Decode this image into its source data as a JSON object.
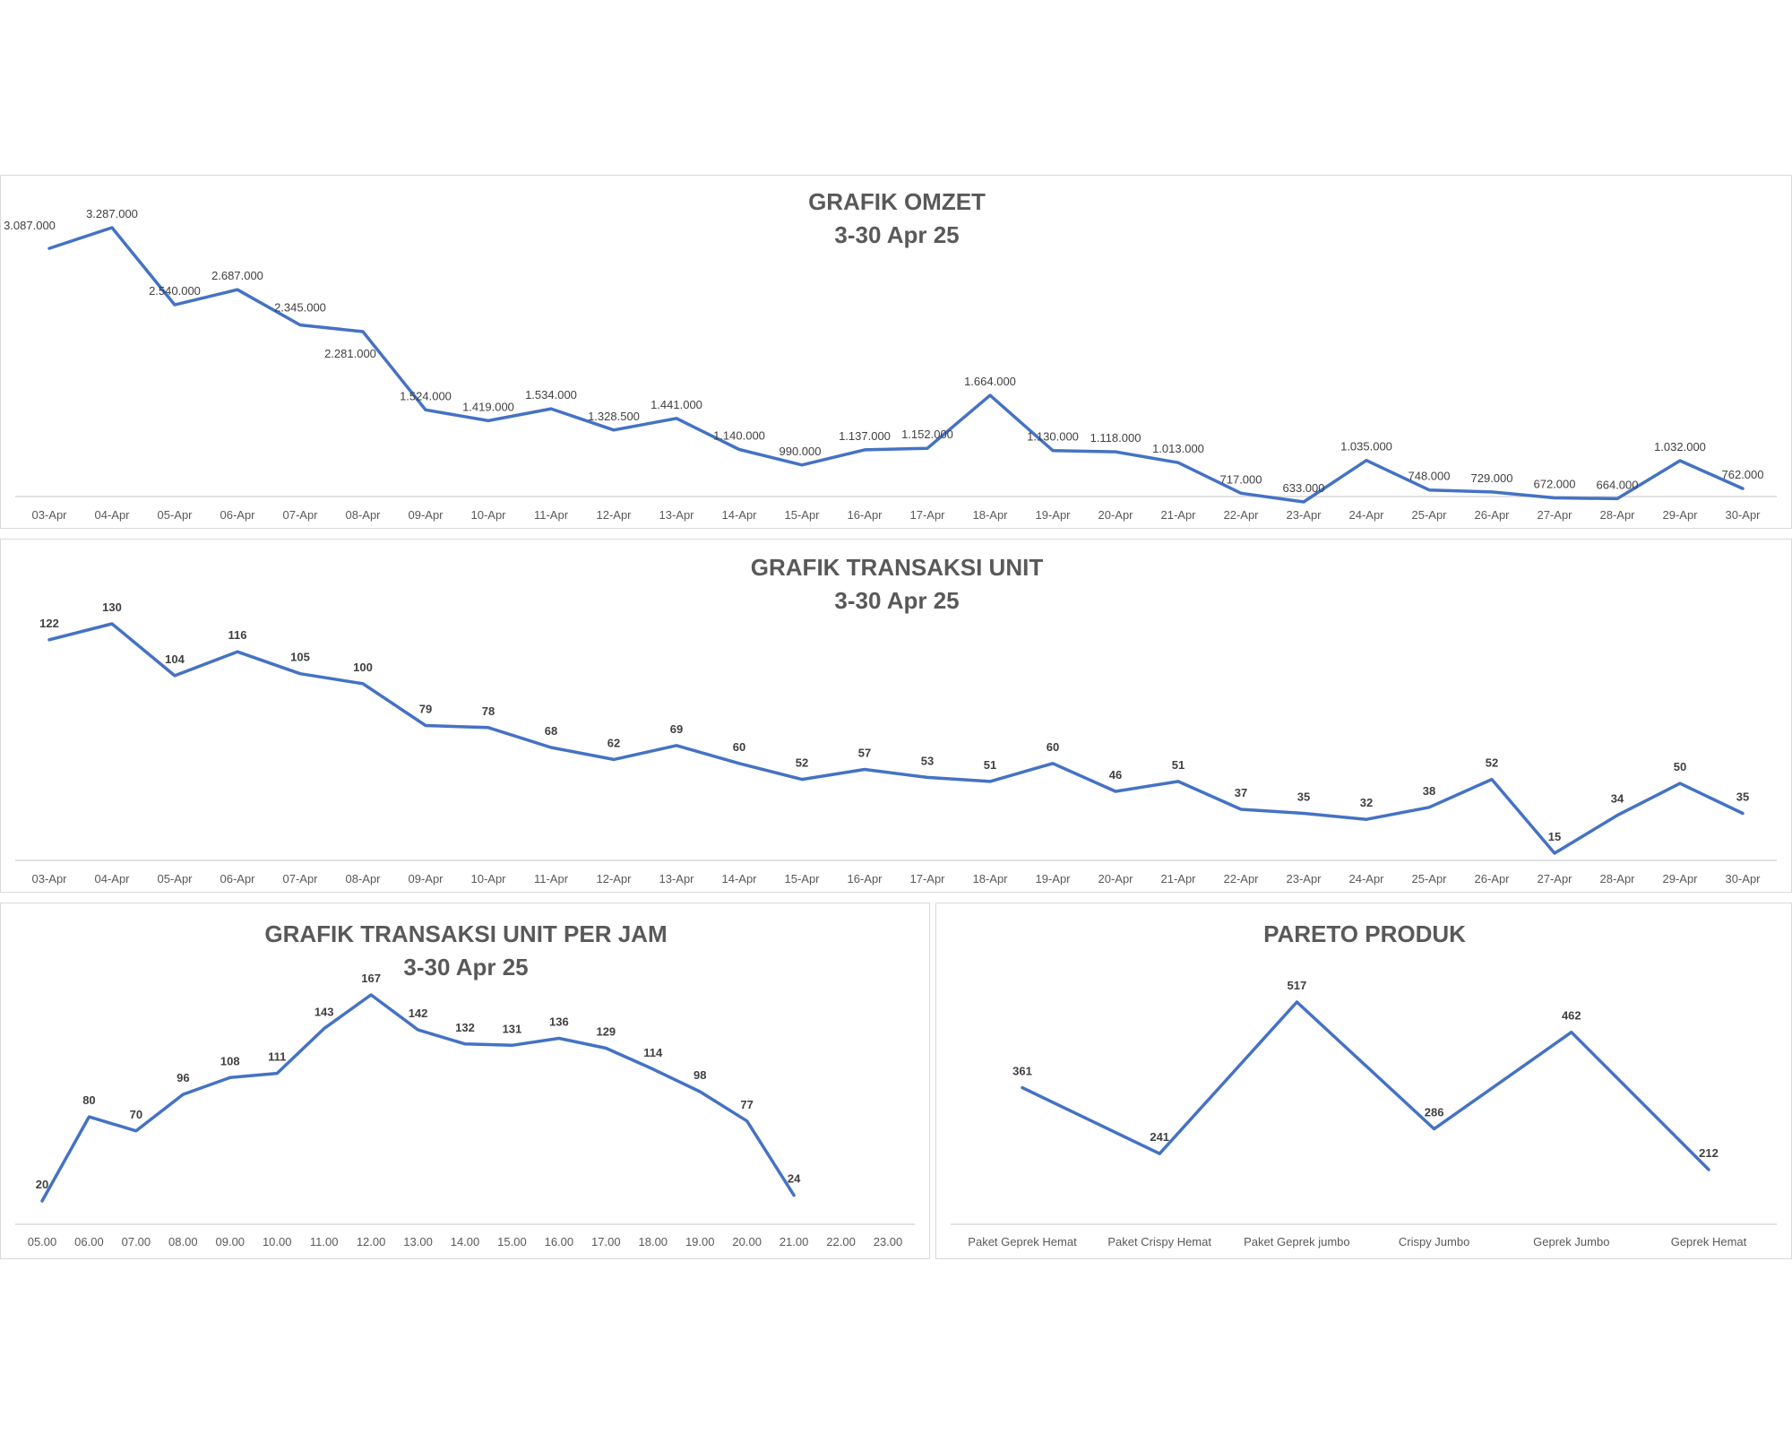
{
  "colors": {
    "line": "#4472C4",
    "axis": "#d9d9d9",
    "text": "#595959"
  },
  "chart_data": [
    {
      "id": "omzet",
      "type": "line",
      "title": "GRAFIK OMZET",
      "subtitle": "3-30 Apr 25",
      "categories": [
        "03-Apr",
        "04-Apr",
        "05-Apr",
        "06-Apr",
        "07-Apr",
        "08-Apr",
        "09-Apr",
        "10-Apr",
        "11-Apr",
        "12-Apr",
        "13-Apr",
        "14-Apr",
        "15-Apr",
        "16-Apr",
        "17-Apr",
        "18-Apr",
        "19-Apr",
        "20-Apr",
        "21-Apr",
        "22-Apr",
        "23-Apr",
        "24-Apr",
        "25-Apr",
        "26-Apr",
        "27-Apr",
        "28-Apr",
        "29-Apr",
        "30-Apr"
      ],
      "values": [
        3087000,
        3287000,
        2540000,
        2687000,
        2345000,
        2281000,
        1524000,
        1419000,
        1534000,
        1328500,
        1441000,
        1140000,
        990000,
        1137000,
        1152000,
        1664000,
        1130000,
        1118000,
        1013000,
        717000,
        633000,
        1035000,
        748000,
        729000,
        672000,
        664000,
        1032000,
        762000
      ],
      "labels": [
        "3.087.000",
        "3.287.000",
        "2.540.000",
        "2.687.000",
        "2.345.000",
        "2.281.000",
        "1.524.000",
        "1.419.000",
        "1.534.000",
        "1.328.500",
        "1.441.000",
        "1.140.000",
        "990.000",
        "1.137.000",
        "1.152.000",
        "1.664.000",
        "1.130.000",
        "1.118.000",
        "1.013.000",
        "717.000",
        "633.000",
        "1.035.000",
        "748.000",
        "729.000",
        "672.000",
        "664.000",
        "1.032.000",
        "762.000"
      ],
      "label_style": "normal",
      "xlabel": "",
      "ylabel": "",
      "ylim": [
        0,
        3500000
      ],
      "grid": false,
      "legend": "none"
    },
    {
      "id": "unit",
      "type": "line",
      "title": "GRAFIK TRANSAKSI UNIT",
      "subtitle": "3-30 Apr 25",
      "categories": [
        "03-Apr",
        "04-Apr",
        "05-Apr",
        "06-Apr",
        "07-Apr",
        "08-Apr",
        "09-Apr",
        "10-Apr",
        "11-Apr",
        "12-Apr",
        "13-Apr",
        "14-Apr",
        "15-Apr",
        "16-Apr",
        "17-Apr",
        "18-Apr",
        "19-Apr",
        "20-Apr",
        "21-Apr",
        "22-Apr",
        "23-Apr",
        "24-Apr",
        "25-Apr",
        "26-Apr",
        "27-Apr",
        "28-Apr",
        "29-Apr",
        "30-Apr"
      ],
      "values": [
        122,
        130,
        104,
        116,
        105,
        100,
        79,
        78,
        68,
        62,
        69,
        60,
        52,
        57,
        53,
        51,
        60,
        46,
        51,
        37,
        35,
        32,
        38,
        52,
        15,
        34,
        50,
        35
      ],
      "labels": [
        "122",
        "130",
        "104",
        "116",
        "105",
        "100",
        "79",
        "78",
        "68",
        "62",
        "69",
        "60",
        "52",
        "57",
        "53",
        "51",
        "60",
        "46",
        "51",
        "37",
        "35",
        "32",
        "38",
        "52",
        "15",
        "34",
        "50",
        "35"
      ],
      "label_style": "bold",
      "xlabel": "",
      "ylabel": "",
      "ylim": [
        0,
        140
      ],
      "grid": false,
      "legend": "none"
    },
    {
      "id": "jam",
      "type": "line",
      "title": "GRAFIK TRANSAKSI UNIT PER JAM",
      "subtitle": "3-30 Apr 25",
      "categories": [
        "05.00",
        "06.00",
        "07.00",
        "08.00",
        "09.00",
        "10.00",
        "11.00",
        "12.00",
        "13.00",
        "14.00",
        "15.00",
        "16.00",
        "17.00",
        "18.00",
        "19.00",
        "20.00",
        "21.00",
        "22.00",
        "23.00"
      ],
      "values": [
        20,
        80,
        70,
        96,
        108,
        111,
        143,
        167,
        142,
        132,
        131,
        136,
        129,
        114,
        98,
        77,
        24,
        null,
        null
      ],
      "labels": [
        "20",
        "80",
        "70",
        "96",
        "108",
        "111",
        "143",
        "167",
        "142",
        "132",
        "131",
        "136",
        "129",
        "114",
        "98",
        "77",
        "24",
        "",
        ""
      ],
      "label_style": "bold",
      "xlabel": "",
      "ylabel": "",
      "ylim": [
        0,
        180
      ],
      "grid": false,
      "legend": "none"
    },
    {
      "id": "pareto",
      "type": "line",
      "title": "PARETO PRODUK",
      "subtitle": "",
      "categories": [
        "Paket Geprek Hemat",
        "Paket Crispy Hemat",
        "Paket Geprek jumbo",
        "Crispy Jumbo",
        "Geprek Jumbo",
        "Geprek Hemat"
      ],
      "values": [
        361,
        241,
        517,
        286,
        462,
        212
      ],
      "labels": [
        "361",
        "241",
        "517",
        "286",
        "462",
        "212"
      ],
      "label_style": "bold",
      "xlabel": "",
      "ylabel": "",
      "ylim": [
        0,
        550
      ],
      "grid": false,
      "legend": "none"
    }
  ]
}
